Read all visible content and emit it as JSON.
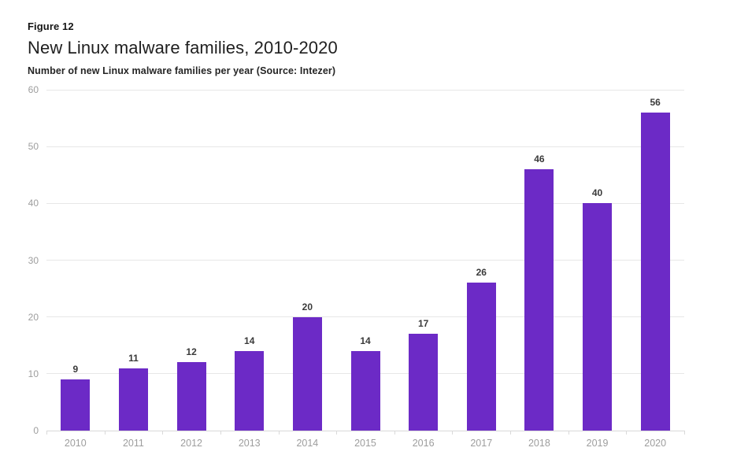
{
  "page": {
    "figure_label": "Figure 12",
    "title": "New Linux malware families, 2010-2020",
    "subtitle": "Number of new Linux malware families per year (Source: Intezer)"
  },
  "colors": {
    "bar": "#6c2ac6",
    "gridline": "#e7e7e7",
    "axis_line": "#d9d9d9",
    "tick": "#d9d9d9",
    "axis_label": "#9d9d9d",
    "data_label": "#3a3a3a",
    "title_text": "#1f1f1f",
    "background": "#ffffff"
  },
  "chart_data": {
    "type": "bar",
    "title": "New Linux malware families, 2010-2020",
    "subtitle": "Number of new Linux malware families per year (Source: Intezer)",
    "categories": [
      "2010",
      "2011",
      "2012",
      "2013",
      "2014",
      "2015",
      "2016",
      "2017",
      "2018",
      "2019",
      "2020"
    ],
    "values": [
      9,
      11,
      12,
      14,
      20,
      14,
      17,
      26,
      46,
      40,
      56
    ],
    "xlabel": "",
    "ylabel": "",
    "ylim": [
      0,
      60
    ],
    "yticks": [
      0,
      10,
      20,
      30,
      40,
      50,
      60
    ],
    "grid": "horizontal",
    "legend": "none",
    "data_labels": true,
    "bar_color": "#6c2ac6"
  }
}
